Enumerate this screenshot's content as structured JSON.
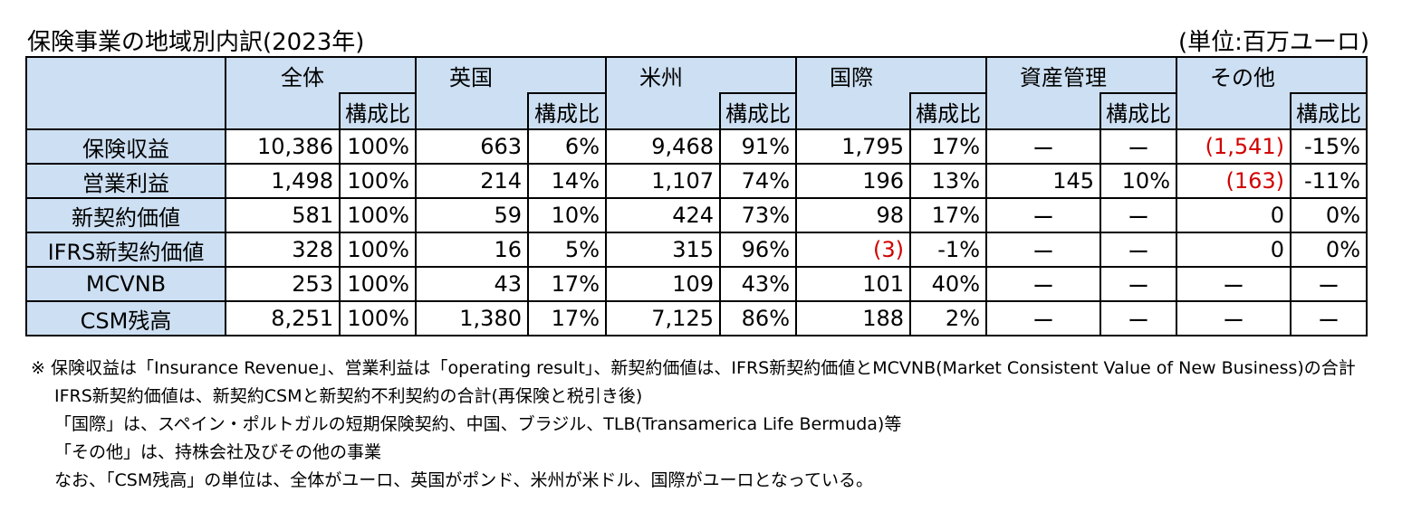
{
  "title": "保険事業の地域別内訳(2023年)",
  "unit": "(単位:百万ユーロ)",
  "sub_label": "構成比",
  "groups": [
    "全体",
    "英国",
    "米州",
    "国際",
    "資産管理",
    "その他"
  ],
  "rows": [
    {
      "label": "保険収益",
      "cells": [
        "10,386",
        "100%",
        "663",
        "6%",
        "9,468",
        "91%",
        "1,795",
        "17%",
        "ー",
        "ー",
        "(1,541)",
        "-15%"
      ]
    },
    {
      "label": "営業利益",
      "cells": [
        "1,498",
        "100%",
        "214",
        "14%",
        "1,107",
        "74%",
        "196",
        "13%",
        "145",
        "10%",
        "(163)",
        "-11%"
      ]
    },
    {
      "label": "新契約価値",
      "cells": [
        "581",
        "100%",
        "59",
        "10%",
        "424",
        "73%",
        "98",
        "17%",
        "ー",
        "ー",
        "0",
        "0%"
      ]
    },
    {
      "label": "IFRS新契約価値",
      "cells": [
        "328",
        "100%",
        "16",
        "5%",
        "315",
        "96%",
        "(3)",
        "-1%",
        "ー",
        "ー",
        "0",
        "0%"
      ]
    },
    {
      "label": "MCVNB",
      "cells": [
        "253",
        "100%",
        "43",
        "17%",
        "109",
        "43%",
        "101",
        "40%",
        "ー",
        "ー",
        "ー",
        "ー"
      ]
    },
    {
      "label": "CSM残高",
      "cells": [
        "8,251",
        "100%",
        "1,380",
        "17%",
        "7,125",
        "86%",
        "188",
        "2%",
        "ー",
        "ー",
        "ー",
        "ー"
      ]
    }
  ],
  "notes": [
    "※  保険収益は「Insurance Revenue」、営業利益は「operating result」、新契約価値は、IFRS新契約価値とMCVNB(Market Consistent Value of New Business)の合計",
    "IFRS新契約価値は、新契約CSMと新契約不利契約の合計(再保険と税引き後)",
    "「国際」は、スペイン・ポルトガルの短期保険契約、中国、ブラジル、TLB(Transamerica Life Bermuda)等",
    "「その他」は、持株会社及びその他の事業",
    "なお、「CSM残高」の単位は、全体がユーロ、英国がポンド、米州が米ドル、国際がユーロとなっている。"
  ],
  "colors": {
    "header_bg": "#cddff2",
    "negative": "#d20000"
  }
}
